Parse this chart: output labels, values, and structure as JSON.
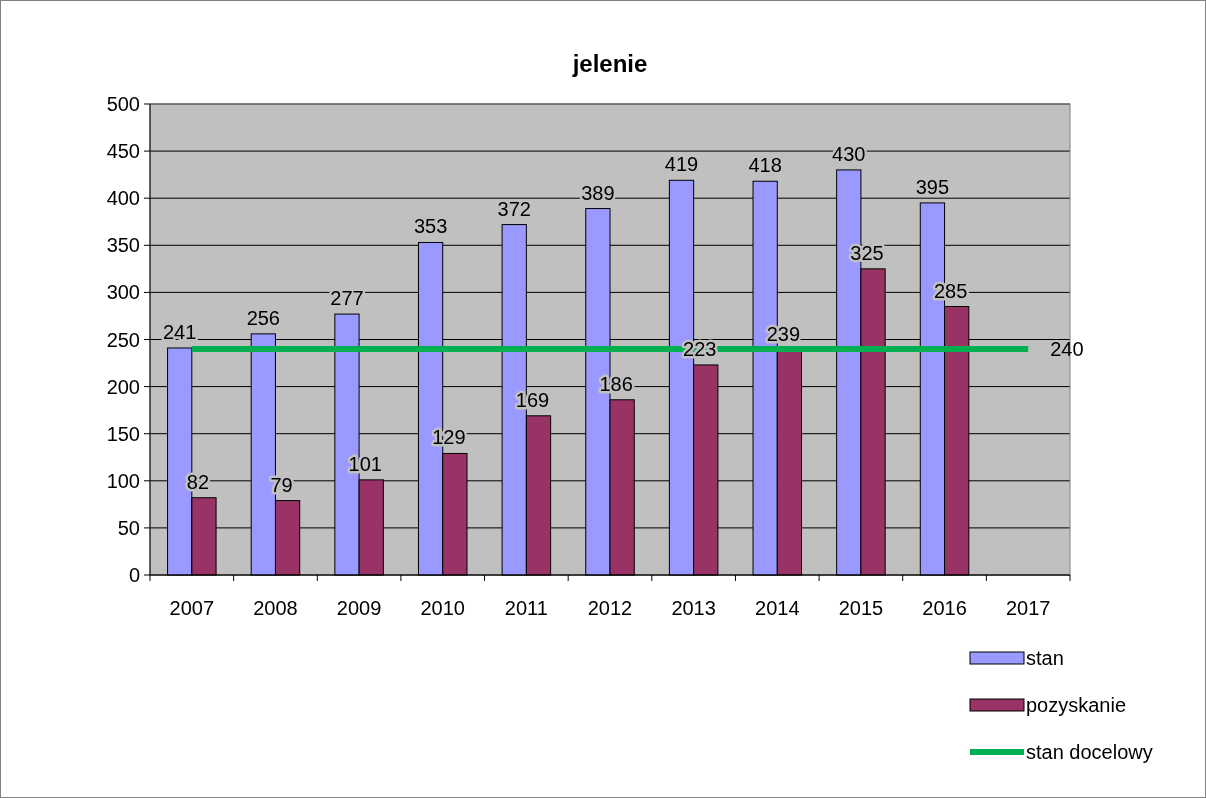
{
  "chart_data": {
    "type": "bar",
    "title": "jelenie",
    "categories": [
      "2007",
      "2008",
      "2009",
      "2010",
      "2011",
      "2012",
      "2013",
      "2014",
      "2015",
      "2016",
      "2017"
    ],
    "series": [
      {
        "name": "stan",
        "color": "#9999ff",
        "values": [
          241,
          256,
          277,
          353,
          372,
          389,
          419,
          418,
          430,
          395,
          null
        ],
        "value_labels": [
          "241",
          "256",
          "277",
          "353",
          "372",
          "389",
          "419",
          "418",
          "430",
          "395",
          null
        ]
      },
      {
        "name": "pozyskanie",
        "color": "#993366",
        "values": [
          82,
          79,
          101,
          129,
          169,
          186,
          223,
          239,
          325,
          285,
          null
        ],
        "value_labels": [
          "82",
          "79",
          "101",
          "129",
          "169",
          "186",
          "223",
          "239",
          "325",
          "285",
          null
        ]
      },
      {
        "name": "stan docelowy",
        "type": "line",
        "color": "#00b050",
        "values": [
          240,
          240,
          240,
          240,
          240,
          240,
          240,
          240,
          240,
          240,
          240
        ],
        "value_labels": [
          null,
          null,
          null,
          null,
          null,
          null,
          null,
          null,
          null,
          null,
          "240"
        ]
      }
    ],
    "ylim": [
      0,
      500
    ],
    "yticks": [
      0,
      50,
      100,
      150,
      200,
      250,
      300,
      350,
      400,
      450,
      500
    ],
    "grid": "y",
    "legend": "bottom right"
  }
}
